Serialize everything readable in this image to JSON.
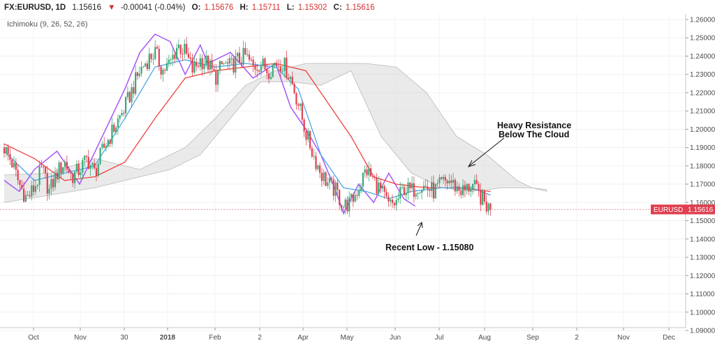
{
  "header": {
    "symbol": "FX:EURUSD, 1D",
    "last": "1.15616",
    "change_arrow": "▼",
    "change": "-0.00041 (-0.04%)",
    "o_label": "O:",
    "o_value": "1.15676",
    "h_label": "H:",
    "h_value": "1.15711",
    "l_label": "L:",
    "l_value": "1.15302",
    "c_label": "C:",
    "c_value": "1.15616"
  },
  "indicator": {
    "label": "Ichimoku (9, 26, 52, 26)"
  },
  "price_tag": {
    "symbol": "EURUSD",
    "value": "1.15616"
  },
  "annotations": {
    "resistance_line1": "Heavy Resistance",
    "resistance_line2": "Below The Cloud",
    "recent_low": "Recent Low - 1.15080"
  },
  "colors": {
    "up_candle": "#3aa776",
    "down_candle": "#e04050",
    "tenkan": "#4aa8e8",
    "kijun": "#f04040",
    "chikou": "#a855f7",
    "cloud": "#d8d8d8",
    "price_tag_bg": "#e04050",
    "header_down": "#d32f2f"
  },
  "chart_data": {
    "type": "candlestick",
    "x_ticks": [
      "Oct",
      "Nov",
      "30",
      "2018",
      "Feb",
      "2",
      "Apr",
      "May",
      "Jun",
      "Jul",
      "Aug",
      "Sep",
      "2",
      "Nov",
      "Dec"
    ],
    "y_ticks": [
      "1.26000",
      "1.25000",
      "1.24000",
      "1.23000",
      "1.22000",
      "1.21000",
      "1.20000",
      "1.19000",
      "1.18000",
      "1.17000",
      "1.16000",
      "1.15000",
      "1.14000",
      "1.13000",
      "1.12000",
      "1.11000",
      "1.10000",
      "1.09000"
    ],
    "ylim": [
      1.09,
      1.265
    ],
    "last_price": 1.15616,
    "price_path": [
      [
        0,
        1.19
      ],
      [
        10,
        1.182
      ],
      [
        20,
        1.17
      ],
      [
        30,
        1.162
      ],
      [
        40,
        1.168
      ],
      [
        50,
        1.178
      ],
      [
        60,
        1.166
      ],
      [
        70,
        1.176
      ],
      [
        80,
        1.182
      ],
      [
        90,
        1.174
      ],
      [
        100,
        1.178
      ],
      [
        110,
        1.184
      ],
      [
        120,
        1.176
      ],
      [
        130,
        1.188
      ],
      [
        140,
        1.196
      ],
      [
        150,
        1.204
      ],
      [
        160,
        1.212
      ],
      [
        170,
        1.222
      ],
      [
        180,
        1.232
      ],
      [
        190,
        1.238
      ],
      [
        200,
        1.242
      ],
      [
        210,
        1.232
      ],
      [
        220,
        1.236
      ],
      [
        230,
        1.246
      ],
      [
        240,
        1.242
      ],
      [
        250,
        1.232
      ],
      [
        260,
        1.238
      ],
      [
        270,
        1.236
      ],
      [
        280,
        1.228
      ],
      [
        290,
        1.236
      ],
      [
        300,
        1.234
      ],
      [
        310,
        1.238
      ],
      [
        320,
        1.24
      ],
      [
        330,
        1.234
      ],
      [
        340,
        1.236
      ],
      [
        350,
        1.232
      ],
      [
        360,
        1.236
      ],
      [
        370,
        1.236
      ],
      [
        380,
        1.228
      ],
      [
        390,
        1.214
      ],
      [
        400,
        1.198
      ],
      [
        410,
        1.186
      ],
      [
        420,
        1.176
      ],
      [
        430,
        1.17
      ],
      [
        440,
        1.166
      ],
      [
        450,
        1.158
      ],
      [
        460,
        1.16
      ],
      [
        470,
        1.168
      ],
      [
        480,
        1.178
      ],
      [
        490,
        1.172
      ],
      [
        500,
        1.166
      ],
      [
        510,
        1.158
      ],
      [
        520,
        1.16
      ],
      [
        530,
        1.168
      ],
      [
        540,
        1.166
      ],
      [
        550,
        1.17
      ],
      [
        560,
        1.168
      ],
      [
        570,
        1.166
      ],
      [
        580,
        1.17
      ],
      [
        590,
        1.172
      ],
      [
        600,
        1.168
      ],
      [
        610,
        1.166
      ],
      [
        620,
        1.17
      ],
      [
        630,
        1.164
      ],
      [
        640,
        1.158
      ],
      [
        645,
        1.156
      ]
    ],
    "tenkan_sen": [
      [
        0,
        1.188
      ],
      [
        40,
        1.172
      ],
      [
        80,
        1.176
      ],
      [
        120,
        1.18
      ],
      [
        160,
        1.206
      ],
      [
        200,
        1.234
      ],
      [
        240,
        1.238
      ],
      [
        280,
        1.234
      ],
      [
        320,
        1.236
      ],
      [
        360,
        1.234
      ],
      [
        390,
        1.222
      ],
      [
        420,
        1.186
      ],
      [
        450,
        1.168
      ],
      [
        480,
        1.166
      ],
      [
        510,
        1.162
      ],
      [
        540,
        1.166
      ],
      [
        580,
        1.168
      ],
      [
        620,
        1.168
      ],
      [
        645,
        1.164
      ]
    ],
    "kijun_sen": [
      [
        0,
        1.192
      ],
      [
        40,
        1.184
      ],
      [
        80,
        1.172
      ],
      [
        120,
        1.174
      ],
      [
        160,
        1.182
      ],
      [
        200,
        1.206
      ],
      [
        240,
        1.228
      ],
      [
        280,
        1.232
      ],
      [
        320,
        1.234
      ],
      [
        360,
        1.236
      ],
      [
        400,
        1.232
      ],
      [
        430,
        1.214
      ],
      [
        460,
        1.196
      ],
      [
        490,
        1.174
      ],
      [
        520,
        1.17
      ],
      [
        560,
        1.168
      ],
      [
        600,
        1.168
      ],
      [
        645,
        1.166
      ]
    ],
    "chikou_span": [
      [
        0,
        1.172
      ],
      [
        20,
        1.166
      ],
      [
        40,
        1.178
      ],
      [
        70,
        1.188
      ],
      [
        100,
        1.17
      ],
      [
        130,
        1.196
      ],
      [
        160,
        1.222
      ],
      [
        180,
        1.242
      ],
      [
        200,
        1.252
      ],
      [
        220,
        1.248
      ],
      [
        240,
        1.23
      ],
      [
        260,
        1.246
      ],
      [
        270,
        1.236
      ],
      [
        300,
        1.242
      ],
      [
        330,
        1.228
      ],
      [
        360,
        1.236
      ],
      [
        380,
        1.212
      ],
      [
        400,
        1.2
      ],
      [
        420,
        1.186
      ],
      [
        440,
        1.166
      ],
      [
        450,
        1.154
      ],
      [
        470,
        1.17
      ],
      [
        490,
        1.16
      ],
      [
        510,
        1.176
      ],
      [
        530,
        1.162
      ],
      [
        545,
        1.158
      ]
    ],
    "cloud_upper": [
      [
        0,
        1.175
      ],
      [
        60,
        1.176
      ],
      [
        120,
        1.184
      ],
      [
        180,
        1.178
      ],
      [
        240,
        1.19
      ],
      [
        280,
        1.206
      ],
      [
        320,
        1.224
      ],
      [
        360,
        1.232
      ],
      [
        400,
        1.236
      ],
      [
        440,
        1.236
      ],
      [
        480,
        1.236
      ],
      [
        520,
        1.234
      ],
      [
        560,
        1.22
      ],
      [
        600,
        1.196
      ],
      [
        640,
        1.186
      ],
      [
        680,
        1.172
      ],
      [
        700,
        1.168
      ],
      [
        720,
        1.167
      ]
    ],
    "cloud_lower": [
      [
        0,
        1.16
      ],
      [
        60,
        1.164
      ],
      [
        120,
        1.168
      ],
      [
        180,
        1.174
      ],
      [
        220,
        1.178
      ],
      [
        260,
        1.186
      ],
      [
        300,
        1.206
      ],
      [
        340,
        1.226
      ],
      [
        380,
        1.226
      ],
      [
        420,
        1.224
      ],
      [
        460,
        1.232
      ],
      [
        500,
        1.196
      ],
      [
        540,
        1.176
      ],
      [
        580,
        1.168
      ],
      [
        620,
        1.166
      ],
      [
        660,
        1.168
      ],
      [
        700,
        1.168
      ],
      [
        720,
        1.166
      ]
    ]
  }
}
